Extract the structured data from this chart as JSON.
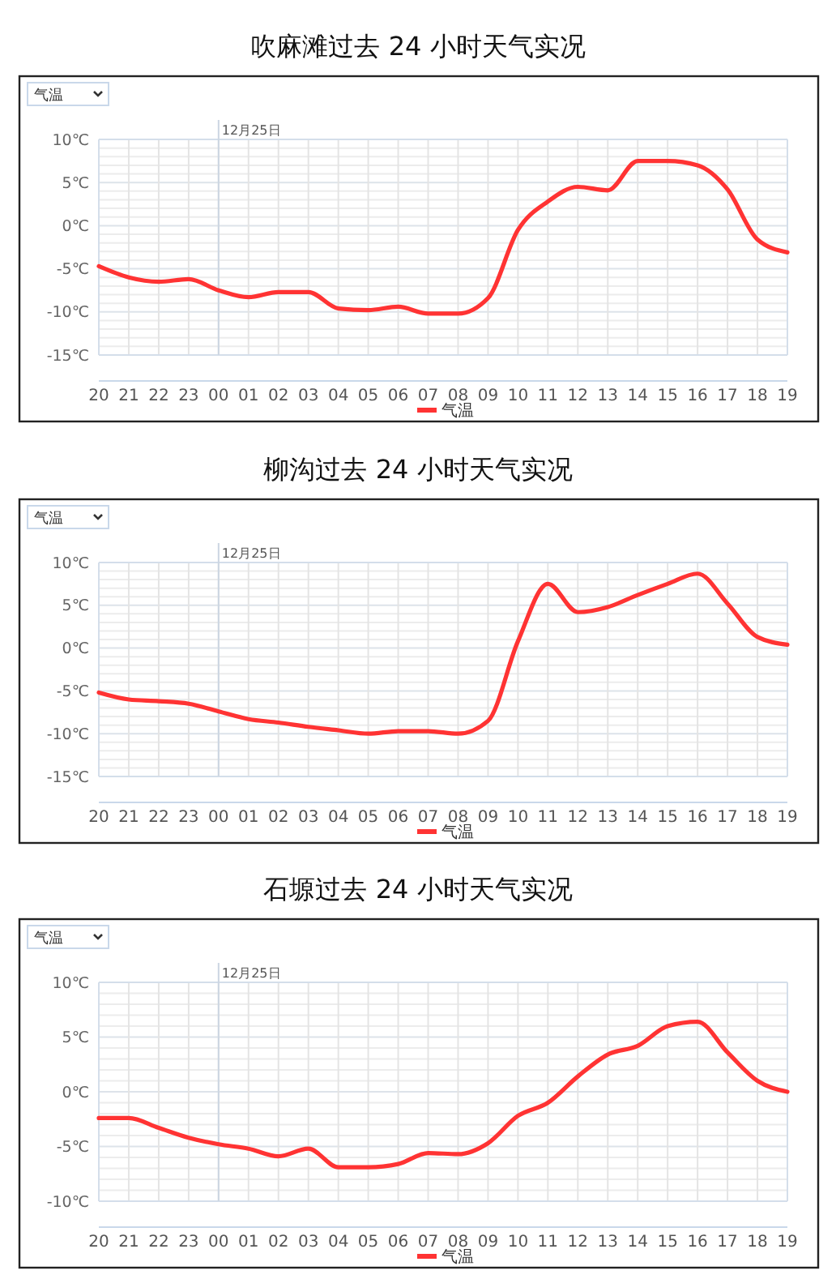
{
  "chart_data": [
    {
      "type": "line",
      "title": "吹麻滩过去 24 小时天气实况",
      "annotations": [
        "气温"
      ],
      "categories": [
        "20",
        "21",
        "22",
        "23",
        "00",
        "01",
        "02",
        "03",
        "04",
        "05",
        "06",
        "07",
        "08",
        "09",
        "10",
        "11",
        "12",
        "13",
        "14",
        "15",
        "16",
        "17",
        "18",
        "19"
      ],
      "series": [
        {
          "name": "气温",
          "color": "#ff3333",
          "values": [
            -4.7,
            -6.0,
            -6.5,
            -6.2,
            -7.5,
            -8.3,
            -7.7,
            -7.7,
            -9.6,
            -9.8,
            -9.4,
            -10.2,
            -10.2,
            -8.4,
            -0.5,
            2.8,
            4.5,
            4.1,
            7.5,
            7.5,
            7.0,
            4.2,
            -1.6,
            -3.1
          ]
        }
      ],
      "ylim": [
        -15,
        10
      ],
      "yticks": [
        {
          "value": -15,
          "label": "-15℃"
        },
        {
          "value": -14,
          "label": null
        },
        {
          "value": -13,
          "label": null
        },
        {
          "value": -12,
          "label": null
        },
        {
          "value": -11,
          "label": null
        },
        {
          "value": -10,
          "label": "-10℃"
        },
        {
          "value": -9,
          "label": null
        },
        {
          "value": -8,
          "label": null
        },
        {
          "value": -7,
          "label": null
        },
        {
          "value": -6,
          "label": null
        },
        {
          "value": -5,
          "label": "-5℃"
        },
        {
          "value": -4,
          "label": null
        },
        {
          "value": -3,
          "label": null
        },
        {
          "value": -2,
          "label": null
        },
        {
          "value": -1,
          "label": null
        },
        {
          "value": 0,
          "label": "0℃"
        },
        {
          "value": 1,
          "label": null
        },
        {
          "value": 2,
          "label": null
        },
        {
          "value": 3,
          "label": null
        },
        {
          "value": 4,
          "label": null
        },
        {
          "value": 5,
          "label": "5℃"
        },
        {
          "value": 6,
          "label": null
        },
        {
          "value": 7,
          "label": null
        },
        {
          "value": 8,
          "label": null
        },
        {
          "value": 9,
          "label": null
        },
        {
          "value": 10,
          "label": "10℃"
        }
      ],
      "grid": true,
      "legend": "bottom",
      "ref_lines": [
        {
          "axis": "x",
          "value": "00",
          "label": "12月25日"
        }
      ]
    },
    {
      "type": "line",
      "title": "柳沟过去 24 小时天气实况",
      "annotations": [
        "气温"
      ],
      "categories": [
        "20",
        "21",
        "22",
        "23",
        "00",
        "01",
        "02",
        "03",
        "04",
        "05",
        "06",
        "07",
        "08",
        "09",
        "10",
        "11",
        "12",
        "13",
        "14",
        "15",
        "16",
        "17",
        "18",
        "19"
      ],
      "series": [
        {
          "name": "气温",
          "color": "#ff3333",
          "values": [
            -5.2,
            -6.0,
            -6.2,
            -6.5,
            -7.4,
            -8.3,
            -8.7,
            -9.2,
            -9.6,
            -10.0,
            -9.7,
            -9.7,
            -10.0,
            -8.5,
            0.8,
            7.5,
            4.2,
            4.8,
            6.2,
            7.5,
            8.7,
            5.2,
            1.3,
            0.4
          ]
        }
      ],
      "ylim": [
        -15,
        10
      ],
      "yticks": [
        {
          "value": -15,
          "label": "-15℃"
        },
        {
          "value": -14,
          "label": null
        },
        {
          "value": -13,
          "label": null
        },
        {
          "value": -12,
          "label": null
        },
        {
          "value": -11,
          "label": null
        },
        {
          "value": -10,
          "label": "-10℃"
        },
        {
          "value": -9,
          "label": null
        },
        {
          "value": -8,
          "label": null
        },
        {
          "value": -7,
          "label": null
        },
        {
          "value": -6,
          "label": null
        },
        {
          "value": -5,
          "label": "-5℃"
        },
        {
          "value": -4,
          "label": null
        },
        {
          "value": -3,
          "label": null
        },
        {
          "value": -2,
          "label": null
        },
        {
          "value": -1,
          "label": null
        },
        {
          "value": 0,
          "label": "0℃"
        },
        {
          "value": 1,
          "label": null
        },
        {
          "value": 2,
          "label": null
        },
        {
          "value": 3,
          "label": null
        },
        {
          "value": 4,
          "label": null
        },
        {
          "value": 5,
          "label": "5℃"
        },
        {
          "value": 6,
          "label": null
        },
        {
          "value": 7,
          "label": null
        },
        {
          "value": 8,
          "label": null
        },
        {
          "value": 9,
          "label": null
        },
        {
          "value": 10,
          "label": "10℃"
        }
      ],
      "grid": true,
      "legend": "bottom",
      "ref_lines": [
        {
          "axis": "x",
          "value": "00",
          "label": "12月25日"
        }
      ]
    },
    {
      "type": "line",
      "title": "石塬过去 24 小时天气实况",
      "annotations": [
        "气温"
      ],
      "categories": [
        "20",
        "21",
        "22",
        "23",
        "00",
        "01",
        "02",
        "03",
        "04",
        "05",
        "06",
        "07",
        "08",
        "09",
        "10",
        "11",
        "12",
        "13",
        "14",
        "15",
        "16",
        "17",
        "18",
        "19"
      ],
      "series": [
        {
          "name": "气温",
          "color": "#ff3333",
          "values": [
            -2.4,
            -2.4,
            -3.3,
            -4.2,
            -4.8,
            -5.2,
            -5.9,
            -5.2,
            -6.9,
            -6.9,
            -6.6,
            -5.6,
            -5.7,
            -4.7,
            -2.2,
            -1.0,
            1.4,
            3.4,
            4.2,
            6.0,
            6.4,
            3.6,
            1.0,
            0.0
          ]
        }
      ],
      "ylim": [
        -10,
        10
      ],
      "yticks": [
        {
          "value": -10,
          "label": "-10℃"
        },
        {
          "value": -9,
          "label": null
        },
        {
          "value": -8,
          "label": null
        },
        {
          "value": -7,
          "label": null
        },
        {
          "value": -6,
          "label": null
        },
        {
          "value": -5,
          "label": "-5℃"
        },
        {
          "value": -4,
          "label": null
        },
        {
          "value": -3,
          "label": null
        },
        {
          "value": -2,
          "label": null
        },
        {
          "value": -1,
          "label": null
        },
        {
          "value": 0,
          "label": "0℃"
        },
        {
          "value": 1,
          "label": null
        },
        {
          "value": 2,
          "label": null
        },
        {
          "value": 3,
          "label": null
        },
        {
          "value": 4,
          "label": null
        },
        {
          "value": 5,
          "label": "5℃"
        },
        {
          "value": 6,
          "label": null
        },
        {
          "value": 7,
          "label": null
        },
        {
          "value": 8,
          "label": null
        },
        {
          "value": 9,
          "label": null
        },
        {
          "value": 10,
          "label": "10℃"
        }
      ],
      "grid": true,
      "legend": "bottom",
      "ref_lines": [
        {
          "axis": "x",
          "value": "00",
          "label": "12月25日"
        }
      ]
    }
  ]
}
